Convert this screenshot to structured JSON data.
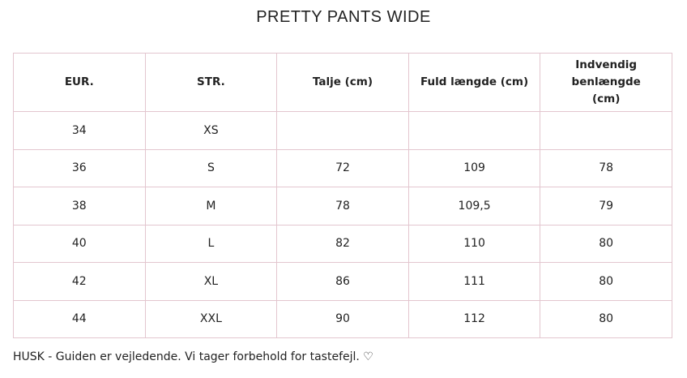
{
  "title": "PRETTY PANTS WIDE",
  "headers": [
    "EUR.",
    "STR.",
    "Talje (cm)",
    "Fuld længde (cm)",
    "Indvendig benlængde (cm)"
  ],
  "rows": [
    [
      "34",
      "XS",
      "",
      "",
      ""
    ],
    [
      "36",
      "S",
      "72",
      "109",
      "78"
    ],
    [
      "38",
      "M",
      "78",
      "109,5",
      "79"
    ],
    [
      "40",
      "L",
      "82",
      "110",
      "80"
    ],
    [
      "42",
      "XL",
      "86",
      "111",
      "80"
    ],
    [
      "44",
      "XXL",
      "90",
      "112",
      "80"
    ]
  ],
  "footer": "HUSK - Guiden er vejledende. Vi tager forbehold for tastefejl. ♡",
  "colors": {
    "border": "#e3c6cf"
  }
}
